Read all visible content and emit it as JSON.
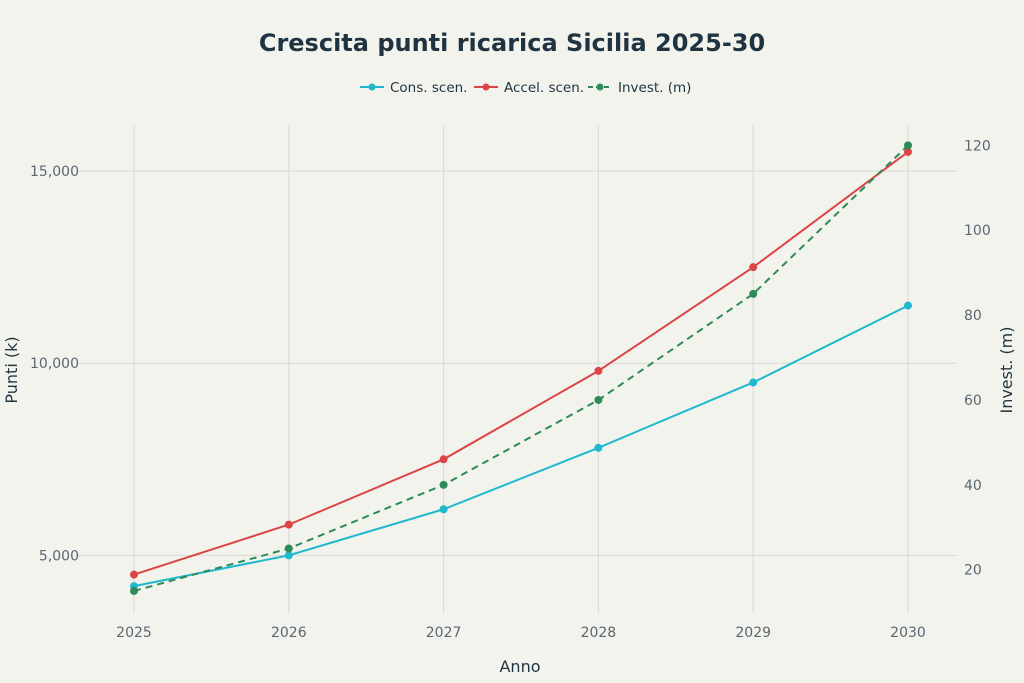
{
  "chart_data": {
    "type": "line",
    "title": "Crescita punti ricarica Sicilia 2025-30",
    "xlabel": "Anno",
    "ylabel": "Punti (k)",
    "y2label": "Invest. (m)",
    "x": [
      2025,
      2026,
      2027,
      2028,
      2029,
      2030
    ],
    "x_ticks": [
      "2025",
      "2026",
      "2027",
      "2028",
      "2029",
      "2030"
    ],
    "ylim": [
      3500,
      16200
    ],
    "y_ticks": [
      5000,
      10000,
      15000
    ],
    "y_tick_labels": [
      "5,000",
      "10,000",
      "15,000"
    ],
    "y2lim": [
      9.8,
      124.8
    ],
    "y2_ticks": [
      20,
      40,
      60,
      80,
      100,
      120
    ],
    "y2_tick_labels": [
      "20",
      "40",
      "60",
      "80",
      "100",
      "120"
    ],
    "grid": true,
    "legend_position": "top-center",
    "series": [
      {
        "name": "Cons. scen.",
        "axis": "left",
        "color": "#1fb8cd",
        "dashed": false,
        "values": [
          4200,
          5000,
          6200,
          7800,
          9500,
          11500
        ]
      },
      {
        "name": "Accel. scen.",
        "axis": "left",
        "color": "#db4545",
        "dashed": false,
        "values": [
          4500,
          5800,
          7500,
          9800,
          12500,
          15500
        ]
      },
      {
        "name": "Invest. (m)",
        "axis": "right",
        "color": "#2e8b57",
        "dashed": true,
        "values": [
          15,
          25,
          40,
          60,
          85,
          120
        ]
      }
    ]
  }
}
